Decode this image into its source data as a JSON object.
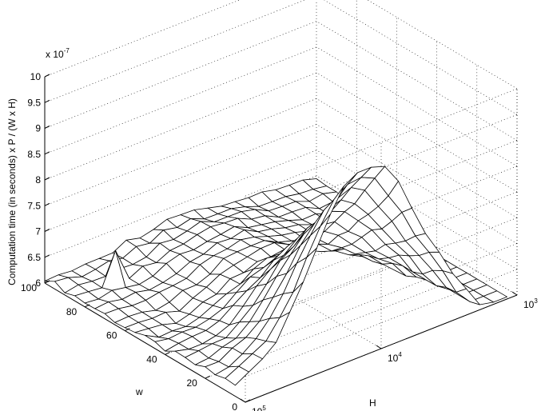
{
  "chart_data": {
    "type": "surface",
    "xlabel": "w",
    "ylabel": "H",
    "zlabel": "Computation time (in seconds) x P / (W x H)",
    "z_exponent_label": "x 10",
    "z_exponent_sup": "-7",
    "w_range": [
      0,
      100
    ],
    "w_ticks": [
      "0",
      "20",
      "40",
      "60",
      "80",
      "100"
    ],
    "H_scale": "log",
    "H_range": [
      1000,
      100000
    ],
    "H_ticks": [
      {
        "base": "10",
        "exp": "5"
      },
      {
        "base": "10",
        "exp": "4"
      },
      {
        "base": "10",
        "exp": "3"
      }
    ],
    "zlim": [
      6,
      10
    ],
    "z_ticks": [
      "6",
      "6.5",
      "7",
      "7.5",
      "8",
      "8.5",
      "9",
      "9.5",
      "10"
    ],
    "grid": true,
    "w_values": [
      100,
      95,
      90,
      85,
      80,
      75,
      70,
      65,
      60,
      55,
      50,
      45,
      40,
      35,
      30,
      25,
      20,
      15,
      10,
      5
    ],
    "H_log10_values": [
      5.0,
      4.9,
      4.8,
      4.7,
      4.6,
      4.5,
      4.4,
      4.3,
      4.2,
      4.1,
      4.0,
      3.9,
      3.8,
      3.7,
      3.6,
      3.5,
      3.4,
      3.3,
      3.2,
      3.1,
      3.0
    ],
    "approx_surface_description_values": {
      "min_z": 5.9,
      "peak_near_small_w_H_1e4_z": 9.1,
      "edge_w100_z": 6.0
    }
  }
}
